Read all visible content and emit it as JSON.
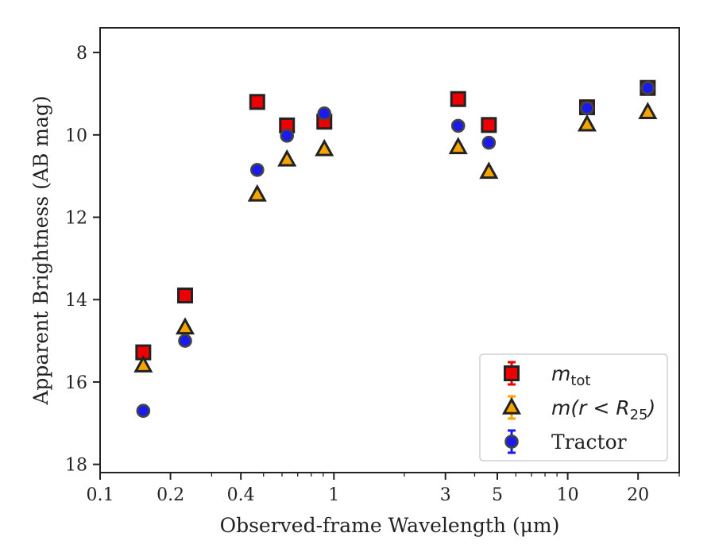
{
  "chart_data": {
    "type": "scatter",
    "xlabel": "Observed-frame Wavelength (μm)",
    "ylabel": "Apparent Brightness (AB mag)",
    "x_scale": "log",
    "xlim": [
      0.1,
      30
    ],
    "ylim": [
      18.2,
      7.4
    ],
    "y_inverted": true,
    "x_ticks": [
      0.1,
      0.2,
      0.4,
      1,
      3,
      5,
      10,
      20
    ],
    "x_tick_labels": [
      "0.1",
      "0.2",
      "0.4",
      "1",
      "3",
      "5",
      "10",
      "20"
    ],
    "y_ticks": [
      8,
      10,
      12,
      14,
      16,
      18
    ],
    "y_tick_labels": [
      "8",
      "10",
      "12",
      "14",
      "16",
      "18"
    ],
    "legend_position": "lower-right",
    "grid": false,
    "series": [
      {
        "name": "m_tot",
        "legend_math": "m",
        "legend_sub": "tot",
        "legend_suffix": "",
        "marker": "square",
        "color": "#ee0000",
        "edge_color": "#222222",
        "points": [
          {
            "x": 0.153,
            "y": 15.28
          },
          {
            "x": 0.231,
            "y": 13.9
          },
          {
            "x": 0.47,
            "y": 9.2
          },
          {
            "x": 0.63,
            "y": 9.77
          },
          {
            "x": 0.91,
            "y": 9.68
          },
          {
            "x": 3.4,
            "y": 9.13
          },
          {
            "x": 4.6,
            "y": 9.76
          },
          {
            "x": 12.1,
            "y": 9.33
          },
          {
            "x": 22.0,
            "y": 8.86
          }
        ]
      },
      {
        "name": "m(r < R_25)",
        "legend_math": "m(r < R",
        "legend_sub": "25",
        "legend_suffix": ")",
        "marker": "triangle",
        "color": "#f5a400",
        "edge_color": "#222222",
        "points": [
          {
            "x": 0.153,
            "y": 15.6
          },
          {
            "x": 0.231,
            "y": 14.68
          },
          {
            "x": 0.47,
            "y": 11.45
          },
          {
            "x": 0.63,
            "y": 10.6
          },
          {
            "x": 0.91,
            "y": 10.35
          },
          {
            "x": 3.4,
            "y": 10.3
          },
          {
            "x": 4.6,
            "y": 10.9
          },
          {
            "x": 12.1,
            "y": 9.75
          },
          {
            "x": 22.0,
            "y": 9.45
          }
        ]
      },
      {
        "name": "Tractor",
        "legend_math": "",
        "legend_sub": "",
        "legend_suffix": "",
        "legend_text": "Tractor",
        "marker": "circle",
        "color": "#1a1aee",
        "edge_color": "#333333",
        "points": [
          {
            "x": 0.153,
            "y": 16.7
          },
          {
            "x": 0.231,
            "y": 15.0
          },
          {
            "x": 0.47,
            "y": 10.85
          },
          {
            "x": 0.63,
            "y": 10.02
          },
          {
            "x": 0.91,
            "y": 9.48
          },
          {
            "x": 3.4,
            "y": 9.78
          },
          {
            "x": 4.6,
            "y": 10.19
          },
          {
            "x": 12.1,
            "y": 9.35
          },
          {
            "x": 22.0,
            "y": 8.86
          }
        ]
      }
    ]
  }
}
